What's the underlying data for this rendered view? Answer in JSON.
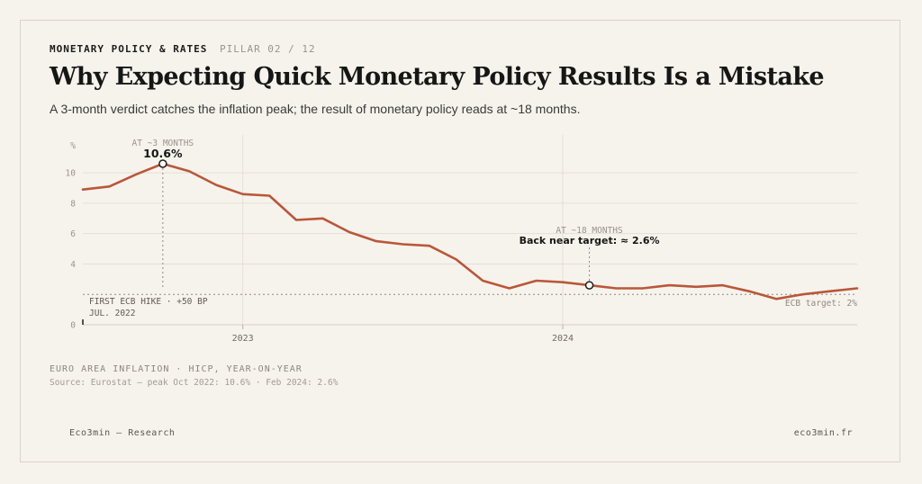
{
  "header": {
    "category": "MONETARY POLICY & RATES",
    "pillar": "PILLAR 02 / 12",
    "title": "Why Expecting Quick Monetary Policy Results Is a Mistake",
    "subtitle": "A 3-month verdict catches the inflation peak; the result of monetary policy reads at ~18 months."
  },
  "chart_data": {
    "type": "line",
    "ylabel": "%",
    "ylim": [
      0,
      10.6
    ],
    "yticks": [
      0,
      4,
      6,
      8,
      10
    ],
    "xticks": [
      {
        "label": "2023",
        "x": 2023.0
      },
      {
        "label": "2024",
        "x": 2024.0
      }
    ],
    "xlim": [
      2022.5,
      2024.92
    ],
    "grid": true,
    "series": [
      {
        "name": "",
        "color": "#b9573a",
        "x": [
          2022.5,
          2022.583,
          2022.667,
          2022.75,
          2022.833,
          2022.917,
          2023.0,
          2023.083,
          2023.167,
          2023.25,
          2023.333,
          2023.417,
          2023.5,
          2023.583,
          2023.667,
          2023.75,
          2023.833,
          2023.917,
          2024.0,
          2024.083,
          2024.167,
          2024.25,
          2024.333,
          2024.417,
          2024.5,
          2024.583,
          2024.667,
          2024.75,
          2024.833,
          2024.92
        ],
        "y": [
          8.9,
          9.1,
          9.9,
          10.6,
          10.1,
          9.2,
          8.6,
          8.5,
          6.9,
          7.0,
          6.1,
          5.5,
          5.3,
          5.2,
          4.3,
          2.9,
          2.4,
          2.9,
          2.8,
          2.6,
          2.4,
          2.4,
          2.6,
          2.5,
          2.6,
          2.2,
          1.7,
          2.0,
          2.2,
          2.4
        ]
      }
    ],
    "reference_line": {
      "y": 2.0,
      "label": "ECB target: 2%"
    },
    "annotations": [
      {
        "x": 2022.75,
        "y": 10.6,
        "top": "AT ~3 MONTHS",
        "value": "10.6%"
      },
      {
        "x": 2024.083,
        "y": 2.6,
        "top": "AT ~18 MONTHS",
        "value": "Back near target: ≈ 2.6%"
      }
    ],
    "start_marker": {
      "x": 2022.5,
      "line1": "FIRST ECB HIKE · +50 BP",
      "line2": "JUL. 2022"
    }
  },
  "source": {
    "label": "EURO AREA INFLATION · HICP, YEAR-ON-YEAR",
    "text": "Source: Eurostat — peak Oct 2022: 10.6% · Feb 2024: 2.6%"
  },
  "footer": {
    "left": "Eco3min — Research",
    "right": "eco3min.fr"
  },
  "colors": {
    "background": "#f6f3ec",
    "line": "#b9573a",
    "grid": "#e4e0d6",
    "muted": "#9a958b"
  }
}
